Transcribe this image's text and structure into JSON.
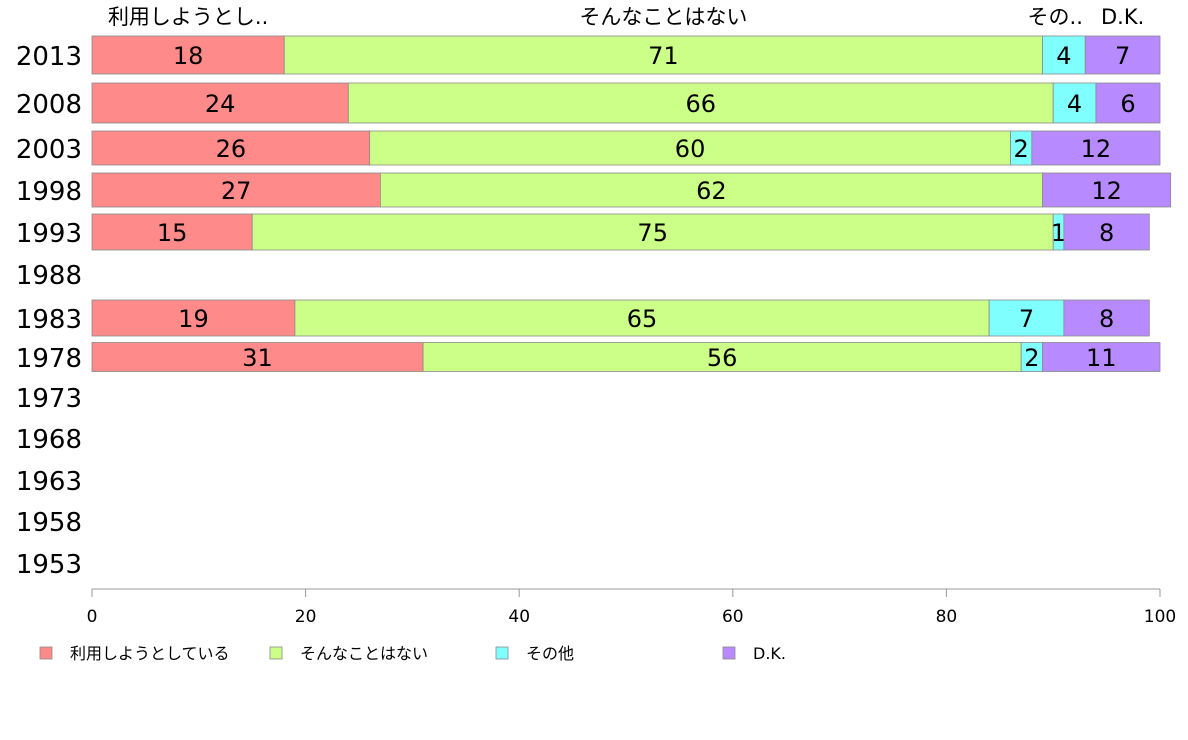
{
  "chart_data": {
    "type": "bar",
    "orientation": "horizontal",
    "stacked": true,
    "categories": [
      "2013",
      "2008",
      "2003",
      "1998",
      "1993",
      "1988",
      "1983",
      "1978",
      "1973",
      "1968",
      "1963",
      "1958",
      "1953"
    ],
    "series": [
      {
        "name": "利用しようとしている",
        "color": "#ff8a8a",
        "values": [
          18,
          24,
          26,
          27,
          15,
          null,
          19,
          31,
          null,
          null,
          null,
          null,
          null
        ]
      },
      {
        "name": "そんなことはない",
        "color": "#ccff88",
        "values": [
          71,
          66,
          60,
          62,
          75,
          null,
          65,
          56,
          null,
          null,
          null,
          null,
          null
        ]
      },
      {
        "name": "その他",
        "color": "#80ffff",
        "values": [
          4,
          4,
          2,
          0,
          1,
          null,
          7,
          2,
          null,
          null,
          null,
          null,
          null
        ]
      },
      {
        "name": "D.K.",
        "color": "#b88aff",
        "values": [
          7,
          6,
          12,
          12,
          8,
          null,
          8,
          11,
          null,
          null,
          null,
          null,
          null
        ]
      }
    ],
    "top_labels": [
      "利用しようとし..",
      "そんなことはない",
      "その..",
      "D.K."
    ],
    "xlim": [
      0,
      100
    ],
    "xticks": [
      0,
      20,
      40,
      60,
      80,
      100
    ],
    "grid": false,
    "legend_position": "bottom"
  }
}
